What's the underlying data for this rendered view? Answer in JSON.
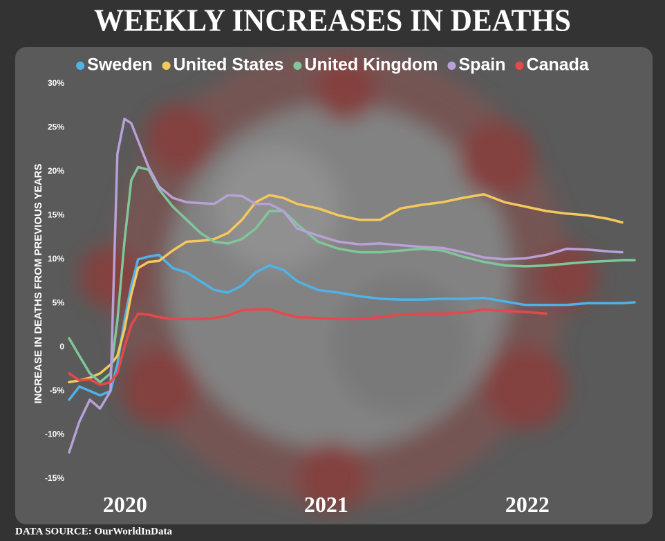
{
  "chart_data": {
    "type": "line",
    "title": "WEEKLY INCREASES IN DEATHS",
    "y_label": "INCREASE IN DEATHS FROM PREVIOUS YEARS",
    "source": "DATA SOURCE:  OurWorldInData",
    "x": [
      2019.722,
      2019.773,
      2019.825,
      2019.876,
      2019.928,
      2019.962,
      2019.997,
      2020.031,
      2020.065,
      2020.117,
      2020.168,
      2020.237,
      2020.306,
      2020.375,
      2020.443,
      2020.512,
      2020.581,
      2020.649,
      2020.718,
      2020.787,
      2020.856,
      2020.959,
      2021.062,
      2021.165,
      2021.268,
      2021.371,
      2021.474,
      2021.577,
      2021.68,
      2021.784,
      2021.887,
      2021.99,
      2022.093,
      2022.196,
      2022.299,
      2022.402,
      2022.471,
      2022.533
    ],
    "xlim": [
      2019.722,
      2022.533
    ],
    "xticks": [
      2020,
      2021,
      2022
    ],
    "ylim": [
      -15,
      30
    ],
    "yticks": [
      {
        "value": -15,
        "label": "-15%"
      },
      {
        "value": -10,
        "label": "-10%"
      },
      {
        "value": -5,
        "label": "-5%"
      },
      {
        "value": 0,
        "label": "0"
      },
      {
        "value": 5,
        "label": "5%"
      },
      {
        "value": 10,
        "label": "10%"
      },
      {
        "value": 15,
        "label": "15%"
      },
      {
        "value": 20,
        "label": "20%"
      },
      {
        "value": 25,
        "label": "25%"
      },
      {
        "value": 30,
        "label": "30%"
      }
    ],
    "grid": false,
    "series": [
      {
        "name": "Sweden",
        "color": "#4fb3e8",
        "values": [
          -6,
          -4.5,
          -5,
          -5.5,
          -5,
          -2,
          3,
          7,
          10,
          10.3,
          10.5,
          9,
          8.5,
          7.5,
          6.5,
          6.2,
          7,
          8.5,
          9.3,
          8.8,
          7.5,
          6.5,
          6.2,
          5.8,
          5.5,
          5.4,
          5.4,
          5.5,
          5.5,
          5.6,
          5.2,
          4.8,
          4.8,
          4.8,
          5,
          5,
          5,
          5.1
        ]
      },
      {
        "name": "United States",
        "color": "#f5c85c",
        "values": [
          -4,
          -3.8,
          -3.5,
          -3,
          -2,
          -1,
          2,
          6,
          9,
          9.7,
          9.8,
          11,
          12,
          12.1,
          12.3,
          13,
          14.5,
          16.5,
          17.3,
          17,
          16.3,
          15.8,
          15,
          14.5,
          14.5,
          15.8,
          16.2,
          16.5,
          17,
          17.4,
          16.5,
          16,
          15.5,
          15.2,
          15,
          14.6,
          14.2,
          null
        ]
      },
      {
        "name": "United Kingdom",
        "color": "#7fc79a",
        "values": [
          1,
          -1,
          -3,
          -4,
          -3,
          3,
          12,
          19,
          20.5,
          20.2,
          18,
          16,
          14.5,
          13,
          12,
          11.8,
          12.3,
          13.5,
          15.5,
          15.5,
          14,
          12,
          11.2,
          10.8,
          10.8,
          11,
          11.2,
          11,
          10.3,
          9.7,
          9.3,
          9.2,
          9.3,
          9.5,
          9.7,
          9.8,
          9.9,
          9.9
        ]
      },
      {
        "name": "Spain",
        "color": "#b9a0d8",
        "values": [
          -12,
          -8.5,
          -6,
          -7,
          -5,
          22,
          26,
          25.5,
          23.5,
          20.5,
          18.3,
          17,
          16.5,
          16.4,
          16.3,
          17.3,
          17.2,
          16.3,
          16.3,
          15.5,
          13.5,
          12.7,
          12,
          11.7,
          11.8,
          11.6,
          11.4,
          11.3,
          10.8,
          10.2,
          10,
          10.1,
          10.5,
          11.2,
          11.1,
          10.9,
          10.8,
          null
        ]
      },
      {
        "name": "Canada",
        "color": "#e8474c",
        "values": [
          -3,
          -3.8,
          -3.7,
          -4.3,
          -4,
          -3,
          0,
          2.5,
          3.8,
          3.7,
          3.4,
          3.2,
          3.2,
          3.2,
          3.3,
          3.6,
          4.2,
          4.3,
          4.3,
          3.8,
          3.4,
          3.3,
          3.2,
          3.2,
          3.4,
          3.7,
          3.8,
          3.8,
          3.9,
          4.3,
          4.1,
          4.0,
          3.8,
          null,
          null,
          null,
          null,
          null
        ]
      }
    ]
  }
}
